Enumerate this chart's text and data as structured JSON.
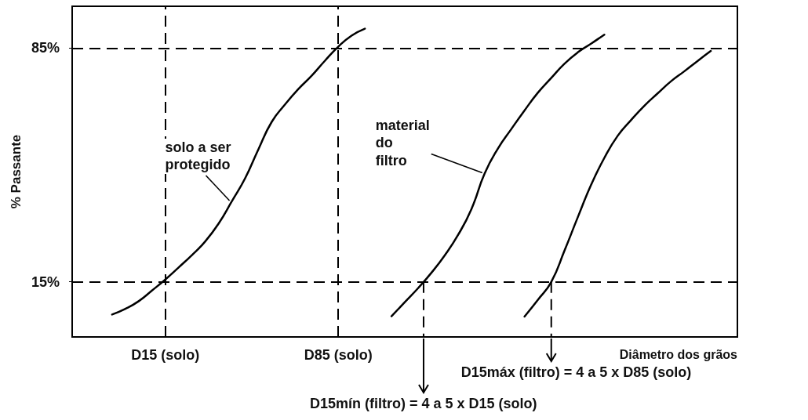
{
  "chart_data": {
    "type": "line",
    "xlabel": "Diâmetro dos grãos",
    "ylabel": "% Passante",
    "categories": [
      null,
      null,
      null,
      null,
      null,
      null,
      null,
      "D15 (solo)",
      null,
      null,
      null,
      null,
      null,
      null,
      null,
      null,
      null,
      null,
      null,
      null,
      "D85 (solo)",
      null,
      null,
      null,
      null,
      null,
      null,
      null,
      null,
      null,
      null,
      null,
      null,
      null,
      null,
      null,
      null,
      null,
      null,
      null,
      null,
      null,
      null,
      null,
      null,
      null,
      null,
      null,
      null,
      null,
      null
    ],
    "ylim": [
      -1.5,
      97.5
    ],
    "yticks": [
      {
        "value": 15,
        "label": "15%"
      },
      {
        "value": 85,
        "label": "85%"
      }
    ],
    "grid": false,
    "marker": "none",
    "line_style": "solid",
    "series": [
      {
        "color": "#000000",
        "values": [
          null,
          null,
          null,
          5.2,
          6.9,
          9.2,
          12.4,
          15.7,
          19.3,
          23.0,
          27.1,
          32.4,
          39.1,
          46.0,
          54.7,
          62.9,
          68.1,
          72.7,
          76.7,
          81.2,
          85.4,
          88.7,
          90.8,
          null,
          null,
          null,
          null,
          null,
          null,
          null,
          null,
          null,
          null,
          null,
          null,
          null,
          null,
          null,
          null,
          null,
          null,
          null,
          null,
          null,
          null,
          null,
          null,
          null,
          null,
          null,
          null
        ]
      },
      {
        "color": "#000000",
        "values": [
          null,
          null,
          null,
          null,
          null,
          null,
          null,
          null,
          null,
          null,
          null,
          null,
          null,
          null,
          null,
          null,
          null,
          null,
          null,
          null,
          null,
          null,
          null,
          null,
          4.7,
          8.9,
          13.1,
          17.7,
          22.9,
          29.0,
          36.7,
          47.4,
          54.9,
          60.7,
          66.3,
          71.6,
          76.0,
          80.3,
          83.7,
          86.3,
          89.0,
          null,
          null,
          null,
          null,
          null,
          null,
          null,
          null,
          null,
          null
        ]
      },
      {
        "color": "#000000",
        "values": [
          null,
          null,
          null,
          null,
          null,
          null,
          null,
          null,
          null,
          null,
          null,
          null,
          null,
          null,
          null,
          null,
          null,
          null,
          null,
          null,
          null,
          null,
          null,
          null,
          null,
          null,
          null,
          null,
          null,
          null,
          null,
          null,
          null,
          null,
          4.6,
          9.6,
          14.9,
          24.3,
          34.3,
          44.0,
          52.1,
          58.7,
          63.4,
          67.7,
          71.4,
          75.0,
          78.0,
          81.1,
          84.1,
          null,
          null
        ]
      }
    ],
    "ref_lines": [
      {
        "axis": "y",
        "value": 85,
        "line_style": "dashed"
      },
      {
        "axis": "y",
        "value": 15,
        "line_style": "dashed"
      },
      {
        "axis": "x",
        "value": "D15 (solo)",
        "line_style": "dashed"
      },
      {
        "axis": "x",
        "value": "D85 (solo)",
        "line_style": "dashed"
      }
    ],
    "annotations": [
      "solo a ser\nprotegido",
      "material\ndo\nfiltro",
      "D15mín (filtro) = 4 a 5 x D15 (solo)",
      "D15máx (filtro) = 4 a 5 x D85 (solo)"
    ]
  }
}
